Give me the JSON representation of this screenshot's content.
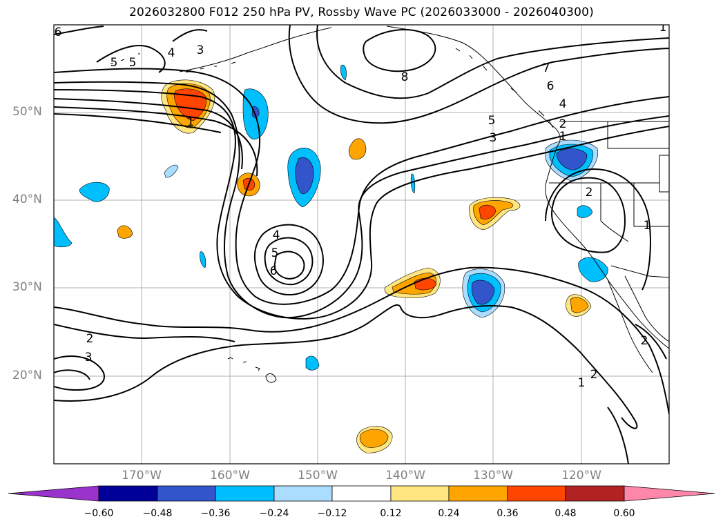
{
  "title": "2026032800 F012 250 hPa PV, Rossby Wave PC (2026033000 - 2026040300)",
  "map": {
    "projection": "plate-carree",
    "extent": {
      "lon_min": -180,
      "lon_max": -110,
      "lat_min": 10,
      "lat_max": 60
    },
    "grid": true,
    "lat_labels": [
      "50°N",
      "40°N",
      "30°N",
      "20°N"
    ],
    "lon_labels": [
      "170°W",
      "160°W",
      "150°W",
      "140°W",
      "130°W",
      "120°W"
    ],
    "contour_labels": [
      "6",
      "5",
      "4",
      "3",
      "5",
      "8",
      "7",
      "6",
      "5",
      "4",
      "3",
      "2",
      "1",
      "1",
      "2",
      "1",
      "4",
      "5",
      "6",
      "2",
      "3",
      "2",
      "1",
      "2",
      "1"
    ]
  },
  "colorbar": {
    "ticks": [
      "−0.60",
      "−0.48",
      "−0.36",
      "−0.24",
      "−0.12",
      "0.12",
      "0.24",
      "0.36",
      "0.48",
      "0.60"
    ],
    "colors": [
      "#9933cc",
      "#000099",
      "#3355cc",
      "#00bfff",
      "#aaddff",
      "#ffffff",
      "#ffe680",
      "#ffa500",
      "#ff4500",
      "#b22222",
      "#ff88aa"
    ],
    "extend": "both"
  }
}
